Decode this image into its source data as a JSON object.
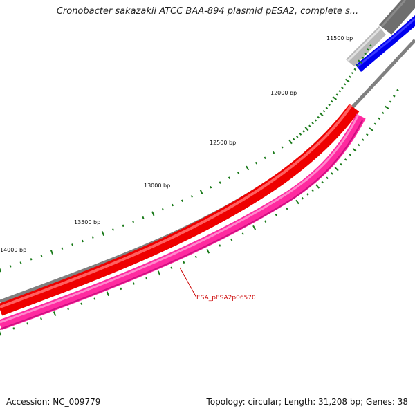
{
  "title": "Cronobacter sakazakii ATCC BAA-894 plasmid pESA2, complete s...",
  "footer": {
    "accession": "Accession: NC_009779",
    "summary": "Topology: circular; Length: 31,208 bp; Genes: 38"
  },
  "ruler": {
    "labels": [
      "11500 bp",
      "12000 bp",
      "12500 bp",
      "13000 bp",
      "13500 bp",
      "14000 bp"
    ],
    "tick_color": "#1a7a1a"
  },
  "tracks": {
    "backbone_color": "#808080",
    "forward_strand_color": "#ee0000",
    "reverse_strand_color": "#ff2aa0",
    "gray_feature_color": "#b0b0b0",
    "blue_feature_color": "#0000ee"
  },
  "gene_label": "ESA_pESA2p06570"
}
